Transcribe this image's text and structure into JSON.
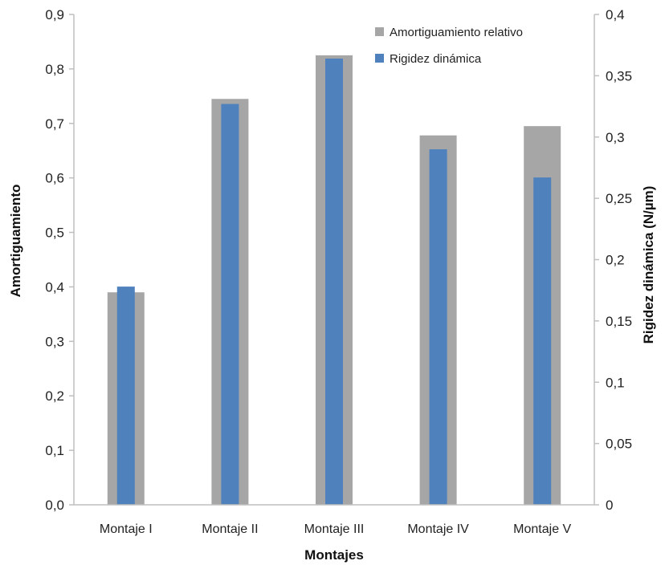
{
  "chart_data": {
    "type": "bar",
    "categories": [
      "Montaje I",
      "Montaje II",
      "Montaje III",
      "Montaje IV",
      "Montaje V"
    ],
    "series": [
      {
        "name": "Amortiguamiento relativo",
        "axis": "left",
        "color": "#a6a6a6",
        "values": [
          0.39,
          0.745,
          0.825,
          0.678,
          0.695
        ]
      },
      {
        "name": "Rigidez dinámica",
        "axis": "right",
        "color": "#4f81bd",
        "values": [
          0.178,
          0.327,
          0.364,
          0.29,
          0.267
        ]
      }
    ],
    "xlabel": "Montajes",
    "ylabel": "Amortiguamiento",
    "ylabel_right": "Rigidez dinámica  (N/µm)",
    "ylim": [
      0,
      0.9
    ],
    "ylim_right": [
      0,
      0.4
    ],
    "y_ticks": [
      "0,0",
      "0,1",
      "0,2",
      "0,3",
      "0,4",
      "0,5",
      "0,6",
      "0,7",
      "0,8",
      "0,9"
    ],
    "y_ticks_right": [
      "0",
      "0,05",
      "0,1",
      "0,15",
      "0,2",
      "0,25",
      "0,3",
      "0,35",
      "0,4"
    ],
    "grid": false,
    "legend_position": "top-right"
  }
}
